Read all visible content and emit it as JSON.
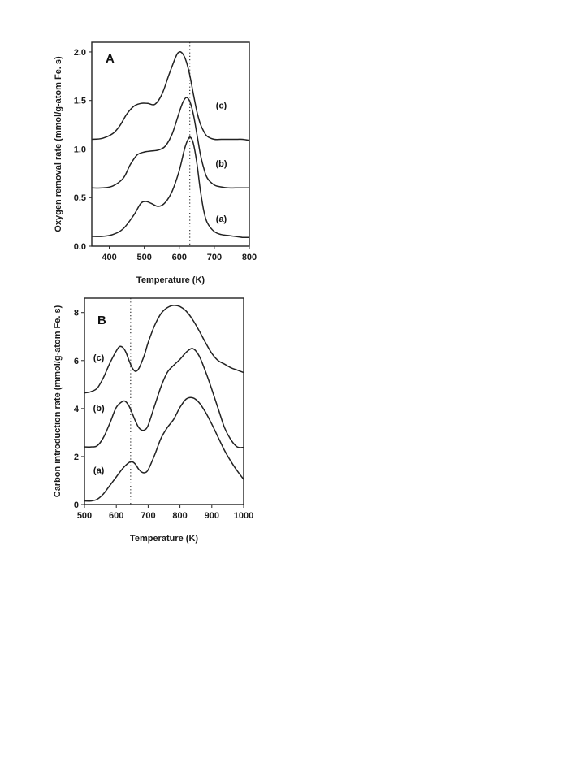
{
  "chart_data": [
    {
      "panel": "A",
      "type": "line",
      "xlabel": "Temperature (K)",
      "ylabel": "Oxygen removal rate (mmol/g-atom Fe. s)",
      "xlim": [
        350,
        800
      ],
      "ylim": [
        0,
        2.1
      ],
      "xticks": [
        400,
        500,
        600,
        700,
        800
      ],
      "yticks": [
        "0.0",
        "0.5",
        "1.0",
        "1.5",
        "2.0"
      ],
      "reference_line_x": 630,
      "series": [
        {
          "name": "(a)",
          "label_at": [
            720,
            0.25
          ],
          "x": [
            350,
            380,
            410,
            440,
            470,
            490,
            505,
            520,
            540,
            560,
            580,
            600,
            615,
            625,
            632,
            640,
            650,
            660,
            670,
            680,
            700,
            720,
            740,
            760,
            780,
            800
          ],
          "y": [
            0.1,
            0.1,
            0.12,
            0.18,
            0.32,
            0.44,
            0.46,
            0.44,
            0.41,
            0.45,
            0.57,
            0.78,
            1.0,
            1.1,
            1.12,
            1.06,
            0.86,
            0.58,
            0.36,
            0.24,
            0.15,
            0.12,
            0.11,
            0.1,
            0.09,
            0.09
          ]
        },
        {
          "name": "(b)",
          "label_at": [
            720,
            0.82
          ],
          "x": [
            350,
            380,
            410,
            440,
            460,
            480,
            500,
            520,
            540,
            560,
            580,
            600,
            610,
            620,
            630,
            640,
            650,
            660,
            670,
            680,
            700,
            720,
            740,
            760,
            780,
            800
          ],
          "y": [
            0.6,
            0.6,
            0.62,
            0.7,
            0.84,
            0.94,
            0.97,
            0.98,
            0.99,
            1.03,
            1.16,
            1.38,
            1.48,
            1.53,
            1.49,
            1.36,
            1.16,
            0.95,
            0.8,
            0.7,
            0.63,
            0.61,
            0.6,
            0.6,
            0.6,
            0.6
          ]
        },
        {
          "name": "(c)",
          "label_at": [
            720,
            1.42
          ],
          "x": [
            350,
            380,
            410,
            430,
            450,
            470,
            490,
            510,
            530,
            550,
            570,
            590,
            600,
            610,
            620,
            630,
            640,
            650,
            660,
            670,
            680,
            700,
            720,
            740,
            760,
            780,
            800
          ],
          "y": [
            1.1,
            1.11,
            1.16,
            1.24,
            1.36,
            1.44,
            1.47,
            1.47,
            1.46,
            1.56,
            1.76,
            1.95,
            2.0,
            1.98,
            1.9,
            1.76,
            1.57,
            1.39,
            1.26,
            1.18,
            1.13,
            1.1,
            1.1,
            1.1,
            1.1,
            1.1,
            1.09
          ]
        }
      ]
    },
    {
      "panel": "B",
      "type": "line",
      "xlabel": "Temperature (K)",
      "ylabel": "Carbon introduction rate (mmol/g-atom Fe. s)",
      "xlim": [
        500,
        1000
      ],
      "ylim": [
        0,
        8.6
      ],
      "xticks": [
        500,
        600,
        700,
        800,
        900,
        1000
      ],
      "yticks": [
        "0",
        "2",
        "4",
        "6",
        "8"
      ],
      "reference_line_x": 645,
      "series": [
        {
          "name": "(a)",
          "label_at": [
            545,
            1.3
          ],
          "x": [
            500,
            520,
            540,
            560,
            580,
            600,
            620,
            640,
            650,
            660,
            670,
            680,
            690,
            700,
            720,
            740,
            760,
            780,
            800,
            820,
            840,
            860,
            880,
            900,
            920,
            940,
            960,
            980,
            1000
          ],
          "y": [
            0.15,
            0.15,
            0.22,
            0.45,
            0.8,
            1.15,
            1.5,
            1.75,
            1.78,
            1.68,
            1.48,
            1.35,
            1.33,
            1.45,
            2.05,
            2.75,
            3.2,
            3.55,
            4.05,
            4.4,
            4.45,
            4.25,
            3.85,
            3.35,
            2.8,
            2.25,
            1.8,
            1.4,
            1.05
          ]
        },
        {
          "name": "(b)",
          "label_at": [
            545,
            3.9
          ],
          "x": [
            500,
            520,
            540,
            560,
            580,
            600,
            620,
            630,
            640,
            650,
            660,
            670,
            680,
            690,
            700,
            720,
            740,
            760,
            780,
            800,
            820,
            840,
            860,
            880,
            900,
            920,
            940,
            960,
            980,
            1000
          ],
          "y": [
            2.4,
            2.4,
            2.45,
            2.8,
            3.4,
            4.05,
            4.3,
            4.28,
            4.1,
            3.8,
            3.48,
            3.22,
            3.1,
            3.12,
            3.3,
            4.1,
            4.9,
            5.5,
            5.8,
            6.05,
            6.35,
            6.5,
            6.2,
            5.55,
            4.8,
            4.0,
            3.2,
            2.7,
            2.4,
            2.38
          ]
        },
        {
          "name": "(c)",
          "label_at": [
            545,
            6.0
          ],
          "x": [
            500,
            520,
            540,
            560,
            580,
            600,
            610,
            620,
            630,
            640,
            650,
            660,
            670,
            680,
            690,
            700,
            720,
            740,
            760,
            780,
            800,
            820,
            840,
            860,
            880,
            900,
            920,
            940,
            960,
            980,
            1000
          ],
          "y": [
            4.65,
            4.7,
            4.85,
            5.3,
            5.9,
            6.4,
            6.58,
            6.55,
            6.35,
            6.0,
            5.7,
            5.55,
            5.65,
            5.95,
            6.3,
            6.75,
            7.45,
            7.95,
            8.2,
            8.3,
            8.25,
            8.05,
            7.7,
            7.25,
            6.75,
            6.3,
            6.0,
            5.85,
            5.7,
            5.6,
            5.5
          ]
        }
      ]
    }
  ]
}
